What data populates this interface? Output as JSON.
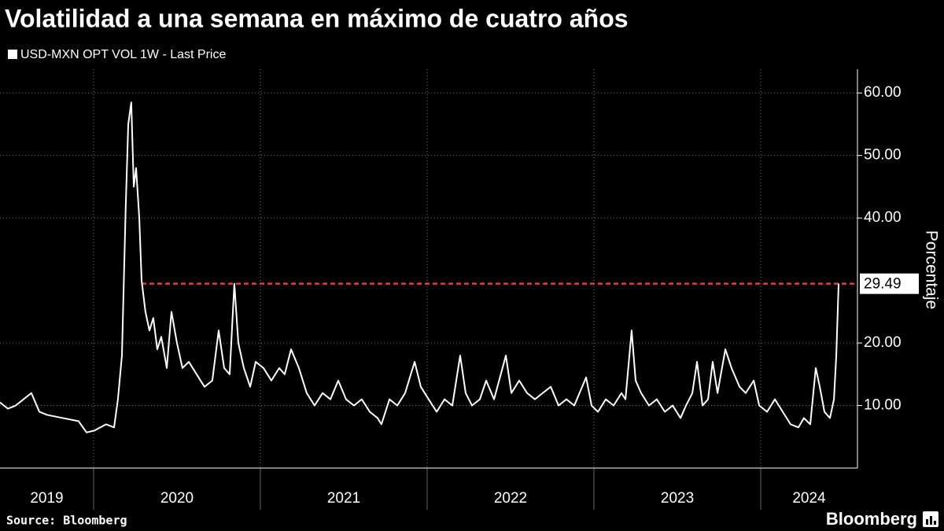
{
  "chart_data": {
    "type": "line",
    "title": "Volatilidad a una semana en máximo de cuatro años",
    "y_label": "Porcentaje",
    "source": "Source: Bloomberg",
    "brand": "Bloomberg",
    "x_labels": [
      "2019",
      "2020",
      "2021",
      "2022",
      "2023",
      "2024"
    ],
    "xlim": [
      2019.439,
      2024.58
    ],
    "xticks": [
      2020,
      2021,
      2022,
      2023,
      2024
    ],
    "ylim": [
      0,
      63.8
    ],
    "yticks": [
      {
        "value": 10,
        "label": "10.00"
      },
      {
        "value": 20,
        "label": "20.00"
      },
      {
        "value": 40,
        "label": "40.00"
      },
      {
        "value": 50,
        "label": "50.00"
      },
      {
        "value": 60,
        "label": "60.00"
      }
    ],
    "grid": true,
    "reference": {
      "value": 29.49,
      "label": "29.49",
      "color": "#e8364f",
      "from": 2020.288
    },
    "x": [
      2019.439,
      2019.486,
      2019.533,
      2019.627,
      2019.675,
      2019.722,
      2019.816,
      2019.91,
      2019.958,
      2020.005,
      2020.075,
      2020.123,
      2020.146,
      2020.17,
      2020.193,
      2020.208,
      2020.226,
      2020.241,
      2020.255,
      2020.274,
      2020.288,
      2020.311,
      2020.335,
      2020.358,
      2020.382,
      2020.406,
      2020.439,
      2020.467,
      2020.5,
      2020.533,
      2020.571,
      2020.618,
      2020.665,
      2020.712,
      2020.75,
      2020.783,
      2020.816,
      2020.844,
      2020.868,
      2020.901,
      2020.939,
      2020.972,
      2021.019,
      2021.066,
      2021.113,
      2021.146,
      2021.184,
      2021.231,
      2021.278,
      2021.325,
      2021.373,
      2021.42,
      2021.467,
      2021.514,
      2021.561,
      2021.608,
      2021.656,
      2021.703,
      2021.726,
      2021.774,
      2021.821,
      2021.868,
      2021.925,
      2021.962,
      2022.009,
      2022.057,
      2022.104,
      2022.151,
      2022.198,
      2022.231,
      2022.269,
      2022.316,
      2022.354,
      2022.401,
      2022.472,
      2022.505,
      2022.552,
      2022.599,
      2022.646,
      2022.693,
      2022.741,
      2022.788,
      2022.835,
      2022.882,
      2022.953,
      2022.986,
      2023.024,
      2023.071,
      2023.118,
      2023.165,
      2023.189,
      2023.226,
      2023.25,
      2023.283,
      2023.33,
      2023.377,
      2023.425,
      2023.472,
      2023.519,
      2023.552,
      2023.59,
      2023.618,
      2023.651,
      2023.684,
      2023.712,
      2023.741,
      2023.788,
      2023.825,
      2023.873,
      2023.91,
      2023.958,
      2023.991,
      2024.038,
      2024.085,
      2024.132,
      2024.179,
      2024.226,
      2024.259,
      2024.297,
      2024.33,
      2024.354,
      2024.382,
      2024.415,
      2024.439,
      2024.453,
      2024.467
    ],
    "series": [
      {
        "name": "USD-MXN OPT VOL 1W - Last Price",
        "color": "#ffffff",
        "values": [
          10.5,
          9.5,
          10,
          12,
          9,
          8.5,
          8,
          7.5,
          5.7,
          6,
          7,
          6.5,
          11,
          18,
          42,
          55,
          58.5,
          45,
          48,
          40,
          30,
          25,
          22,
          24,
          19,
          21,
          16,
          25,
          20,
          16,
          17,
          15,
          13,
          14,
          22,
          16,
          15,
          29.5,
          20,
          16,
          13,
          17,
          16,
          14,
          16,
          15,
          19,
          16,
          12,
          10,
          12,
          11,
          14,
          11,
          10,
          11,
          9,
          8,
          7,
          11,
          10,
          12,
          17,
          13,
          11,
          9,
          11,
          10,
          18,
          12,
          10,
          11,
          14,
          11,
          18,
          12,
          14,
          12,
          11,
          12,
          13,
          10,
          11,
          10,
          14.5,
          10,
          9,
          11,
          10,
          12,
          11,
          22,
          14,
          12,
          10,
          11,
          9,
          10,
          8,
          10,
          12,
          17,
          10,
          11,
          17,
          12,
          19,
          16,
          13,
          12,
          14,
          10,
          9,
          11,
          9,
          7,
          6.5,
          8,
          7,
          16,
          13,
          9,
          8,
          11,
          18,
          29.49
        ]
      }
    ]
  }
}
